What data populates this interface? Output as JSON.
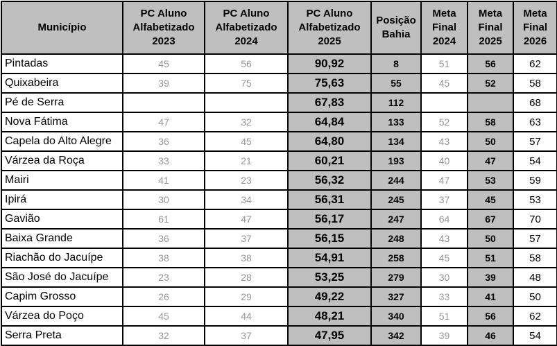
{
  "colors": {
    "header_bg": "#bfbfbf",
    "highlight_bg": "#bfbfbf",
    "muted_text": "#969696",
    "border": "#000000",
    "text": "#000000",
    "cell_bg": "#ffffff"
  },
  "chart_data": {
    "type": "table",
    "title": "",
    "columns": [
      {
        "key": "municipio",
        "label": "Município"
      },
      {
        "key": "pc2023",
        "label": "PC Aluno\nAlfabetizado\n2023"
      },
      {
        "key": "pc2024",
        "label": "PC Aluno\nAlfabetizado\n2024"
      },
      {
        "key": "pc2025",
        "label": "PC Aluno\nAlfabetizado\n2025"
      },
      {
        "key": "posicao",
        "label": "Posição\nBahia"
      },
      {
        "key": "meta2024",
        "label": "Meta\nFinal\n2024"
      },
      {
        "key": "meta2025",
        "label": "Meta\nFinal\n2025"
      },
      {
        "key": "meta2026",
        "label": "Meta\nFinal\n2026"
      }
    ],
    "rows": [
      {
        "municipio": "Pintadas",
        "pc2023": "45",
        "pc2024": "56",
        "pc2025": "90,92",
        "posicao": "8",
        "meta2024": "51",
        "meta2025": "56",
        "meta2026": "62"
      },
      {
        "municipio": "Quixabeira",
        "pc2023": "39",
        "pc2024": "75",
        "pc2025": "75,63",
        "posicao": "55",
        "meta2024": "45",
        "meta2025": "52",
        "meta2026": "58"
      },
      {
        "municipio": "Pé de Serra",
        "pc2023": "",
        "pc2024": "",
        "pc2025": "67,83",
        "posicao": "112",
        "meta2024": "",
        "meta2025": "",
        "meta2026": "68"
      },
      {
        "municipio": "Nova Fátima",
        "pc2023": "47",
        "pc2024": "32",
        "pc2025": "64,84",
        "posicao": "133",
        "meta2024": "52",
        "meta2025": "58",
        "meta2026": "63"
      },
      {
        "municipio": "Capela do Alto Alegre",
        "pc2023": "36",
        "pc2024": "45",
        "pc2025": "64,80",
        "posicao": "134",
        "meta2024": "43",
        "meta2025": "50",
        "meta2026": "57"
      },
      {
        "municipio": "Várzea da Roça",
        "pc2023": "33",
        "pc2024": "21",
        "pc2025": "60,21",
        "posicao": "193",
        "meta2024": "40",
        "meta2025": "47",
        "meta2026": "54"
      },
      {
        "municipio": "Mairi",
        "pc2023": "41",
        "pc2024": "23",
        "pc2025": "56,32",
        "posicao": "244",
        "meta2024": "47",
        "meta2025": "53",
        "meta2026": "59"
      },
      {
        "municipio": "Ipirá",
        "pc2023": "30",
        "pc2024": "34",
        "pc2025": "56,31",
        "posicao": "245",
        "meta2024": "37",
        "meta2025": "45",
        "meta2026": "53"
      },
      {
        "municipio": "Gavião",
        "pc2023": "61",
        "pc2024": "47",
        "pc2025": "56,17",
        "posicao": "247",
        "meta2024": "64",
        "meta2025": "67",
        "meta2026": "70"
      },
      {
        "municipio": "Baixa Grande",
        "pc2023": "36",
        "pc2024": "37",
        "pc2025": "56,15",
        "posicao": "248",
        "meta2024": "43",
        "meta2025": "50",
        "meta2026": "57"
      },
      {
        "municipio": "Riachão do Jacuípe",
        "pc2023": "38",
        "pc2024": "38",
        "pc2025": "54,91",
        "posicao": "258",
        "meta2024": "45",
        "meta2025": "51",
        "meta2026": "58"
      },
      {
        "municipio": "São José do Jacuípe",
        "pc2023": "23",
        "pc2024": "28",
        "pc2025": "53,25",
        "posicao": "279",
        "meta2024": "30",
        "meta2025": "39",
        "meta2026": "48"
      },
      {
        "municipio": "Capim Grosso",
        "pc2023": "26",
        "pc2024": "29",
        "pc2025": "49,22",
        "posicao": "327",
        "meta2024": "33",
        "meta2025": "41",
        "meta2026": "50"
      },
      {
        "municipio": "Várzea do Poço",
        "pc2023": "45",
        "pc2024": "44",
        "pc2025": "48,21",
        "posicao": "340",
        "meta2024": "51",
        "meta2025": "56",
        "meta2026": "62"
      },
      {
        "municipio": "Serra Preta",
        "pc2023": "32",
        "pc2024": "37",
        "pc2025": "47,95",
        "posicao": "342",
        "meta2024": "39",
        "meta2025": "46",
        "meta2026": "54"
      }
    ]
  }
}
